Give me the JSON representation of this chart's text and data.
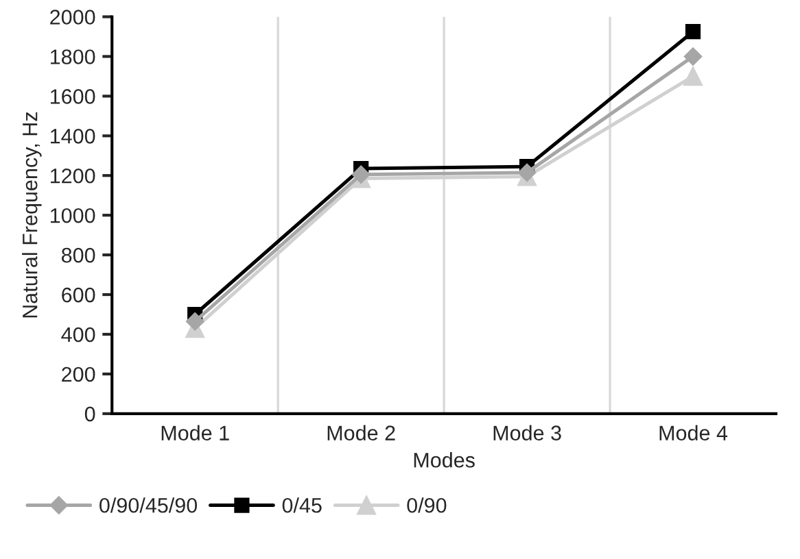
{
  "chart_data": {
    "type": "line",
    "xlabel": "Modes",
    "ylabel": "Natural Frequency, Hz",
    "categories": [
      "Mode 1",
      "Mode 2",
      "Mode 3",
      "Mode 4"
    ],
    "series": [
      {
        "name": "0/90/45/90",
        "color": "#a6a6a6",
        "marker": "diamond",
        "values": [
          465,
          1205,
          1215,
          1800
        ]
      },
      {
        "name": "0/45",
        "color": "#000000",
        "marker": "square",
        "values": [
          500,
          1235,
          1245,
          1925
        ]
      },
      {
        "name": "0/90",
        "color": "#d0d0d0",
        "marker": "triangle",
        "values": [
          430,
          1185,
          1195,
          1700
        ]
      }
    ],
    "ylim": [
      0,
      2000
    ],
    "yticks": [
      0,
      200,
      400,
      600,
      800,
      1000,
      1200,
      1400,
      1600,
      1800,
      2000
    ],
    "grid": "x",
    "legend": "bottom left",
    "line_style": "solid"
  }
}
